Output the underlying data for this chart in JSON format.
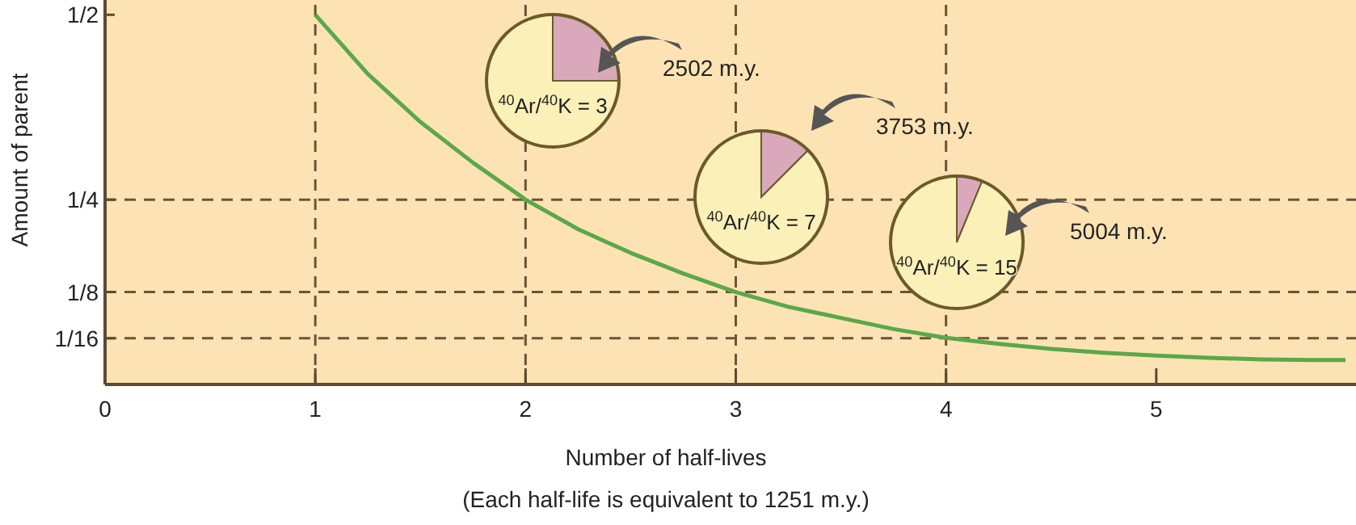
{
  "chart_data": [
    {
      "type": "line",
      "xlabel": "Number of half-lives",
      "ylabel": "Amount of parent",
      "annotations": [
        "(Each half-life is equivalent to 1251 m.y.)"
      ],
      "x": [
        1,
        1.25,
        1.5,
        1.75,
        2,
        2.25,
        2.5,
        2.75,
        3,
        3.25,
        3.5,
        3.75,
        4,
        4.25,
        4.5,
        4.75,
        5,
        5.25,
        5.5,
        5.75,
        5.9
      ],
      "series": [
        {
          "color": "#5aa84a",
          "values": [
            0.5,
            0.42,
            0.355,
            0.3,
            0.25,
            0.21,
            0.178,
            0.15,
            0.125,
            0.105,
            0.09,
            0.075,
            0.063,
            0.055,
            0.048,
            0.043,
            0.039,
            0.036,
            0.034,
            0.033,
            0.033
          ]
        }
      ],
      "xlim": [
        0,
        5.95
      ],
      "ylim": [
        0,
        0.52
      ],
      "xticks": [
        0,
        1,
        2,
        3,
        4,
        5
      ],
      "yticks": [
        {
          "value": 0.5,
          "label": "1/2"
        },
        {
          "value": 0.25,
          "label": "1/4"
        },
        {
          "value": 0.125,
          "label": "1/8"
        },
        {
          "value": 0.0625,
          "label": "1/16"
        }
      ],
      "ref_lines": [
        {
          "axis": "x",
          "value": 1,
          "color": "#6b5438",
          "line_style": "dashed"
        },
        {
          "axis": "x",
          "value": 2,
          "color": "#6b5438",
          "line_style": "dashed"
        },
        {
          "axis": "x",
          "value": 3,
          "color": "#6b5438",
          "line_style": "dashed"
        },
        {
          "axis": "x",
          "value": 4,
          "color": "#6b5438",
          "line_style": "dashed"
        },
        {
          "axis": "y",
          "value": 0.25,
          "color": "#6b5438",
          "line_style": "dashed"
        },
        {
          "axis": "y",
          "value": 0.125,
          "color": "#6b5438",
          "line_style": "dashed"
        },
        {
          "axis": "y",
          "value": 0.0625,
          "color": "#6b5438",
          "line_style": "dashed"
        }
      ]
    },
    {
      "type": "pie",
      "title": "$^{40}$Ar/$^{40}$K = 3",
      "categories": [
        null,
        null
      ],
      "values": [
        25,
        75
      ],
      "colors": [
        "#d9a9bb",
        "#fbf0b8"
      ],
      "annotations": [
        "2502 m.y."
      ]
    },
    {
      "type": "pie",
      "title": "$^{40}$Ar/$^{40}$K = 7",
      "categories": [
        null,
        null
      ],
      "values": [
        12.5,
        87.5
      ],
      "colors": [
        "#d9a9bb",
        "#fbf0b8"
      ],
      "annotations": [
        "3753 m.y."
      ]
    },
    {
      "type": "pie",
      "title": "$^{40}$Ar/$^{40}$K = 15",
      "categories": [
        null,
        null
      ],
      "values": [
        6.25,
        93.75
      ],
      "colors": [
        "#d9a9bb",
        "#fbf0b8"
      ],
      "annotations": [
        "5004 m.y."
      ]
    }
  ]
}
